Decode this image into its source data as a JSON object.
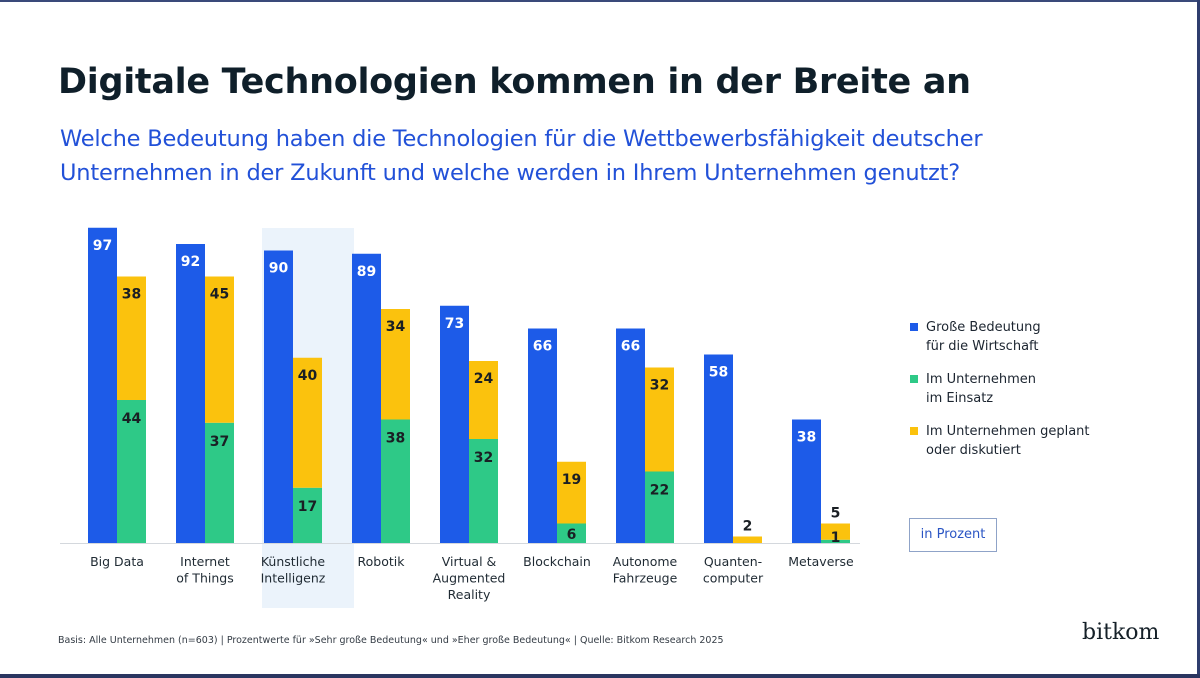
{
  "header": {
    "title": "Digitale Technologien kommen in der Breite an",
    "subtitle": "Welche Bedeutung haben die Technologien für die Wettbewerbsfähigkeit deutscher Unternehmen in der Zukunft und welche werden in Ihrem Unternehmen genutzt?"
  },
  "colors": {
    "blue": "#1d5be8",
    "green": "#2ec987",
    "yellow": "#fbc20d",
    "highlight": "#ebf3fb",
    "title": "#0f1f2a",
    "subtitle": "#2251d8"
  },
  "chart_data": {
    "type": "bar",
    "title": "Digitale Technologien kommen in der Breite an",
    "subtitle": "Welche Bedeutung haben die Technologien für die Wettbewerbsfähigkeit deutscher Unternehmen in der Zukunft und welche werden in Ihrem Unternehmen genutzt?",
    "xlabel": "",
    "ylabel": "",
    "unit": "in Prozent",
    "ylim": [
      0,
      100
    ],
    "grid": false,
    "legend_position": "right",
    "highlighted_category": "Künstliche Intelligenz",
    "categories": [
      [
        "Big Data"
      ],
      [
        "Internet",
        "of Things"
      ],
      [
        "Künstliche",
        "Intelligenz"
      ],
      [
        "Robotik"
      ],
      [
        "Virtual &",
        "Augmented",
        "Reality"
      ],
      [
        "Blockchain"
      ],
      [
        "Autonome",
        "Fahrzeuge"
      ],
      [
        "Quanten-",
        "computer"
      ],
      [
        "Metaverse"
      ]
    ],
    "category_names": [
      "Big Data",
      "Internet of Things",
      "Künstliche Intelligenz",
      "Robotik",
      "Virtual & Augmented Reality",
      "Blockchain",
      "Autonome Fahrzeuge",
      "Quantencomputer",
      "Metaverse"
    ],
    "series": [
      {
        "name": "Große Bedeutung für die Wirtschaft",
        "legend_lines": [
          "Große Bedeutung",
          "für die Wirtschaft"
        ],
        "color": "#1d5be8",
        "stack": "importance",
        "values": [
          97,
          92,
          90,
          89,
          73,
          66,
          66,
          58,
          38
        ]
      },
      {
        "name": "Im Unternehmen im Einsatz",
        "legend_lines": [
          "Im Unternehmen",
          "im Einsatz"
        ],
        "color": "#2ec987",
        "stack": "usage",
        "values": [
          44,
          37,
          17,
          38,
          32,
          6,
          22,
          0,
          1
        ]
      },
      {
        "name": "Im Unternehmen geplant oder diskutiert",
        "legend_lines": [
          "Im Unternehmen geplant",
          "oder diskutiert"
        ],
        "color": "#fbc20d",
        "stack": "usage",
        "values": [
          38,
          45,
          40,
          34,
          24,
          19,
          32,
          2,
          5
        ]
      }
    ]
  },
  "legend": {
    "items": [
      {
        "line1": "Große Bedeutung",
        "line2": "für die Wirtschaft",
        "color": "#1d5be8"
      },
      {
        "line1": "Im Unternehmen",
        "line2": "im Einsatz",
        "color": "#2ec987"
      },
      {
        "line1": "Im Unternehmen geplant",
        "line2": "oder diskutiert",
        "color": "#fbc20d"
      }
    ]
  },
  "unit_label": "in Prozent",
  "footnote": "Basis: Alle Unternehmen (n=603) | Prozentwerte für »Sehr große Bedeutung« und »Eher große Bedeutung« | Quelle: Bitkom Research 2025",
  "logo": "bitkom"
}
